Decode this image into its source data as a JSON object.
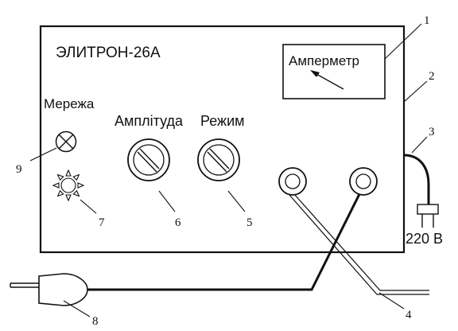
{
  "device": {
    "title": "ЭЛИТРОН-26А",
    "ammeter_label": "Амперметр",
    "network_label": "Мережа",
    "amplitude_label": "Амплітуда",
    "mode_label": "Режим",
    "voltage_label": "220 В"
  },
  "callouts": [
    "1",
    "2",
    "3",
    "4",
    "5",
    "6",
    "7",
    "8",
    "9"
  ],
  "colors": {
    "ink": "#111111",
    "background": "#ffffff"
  }
}
